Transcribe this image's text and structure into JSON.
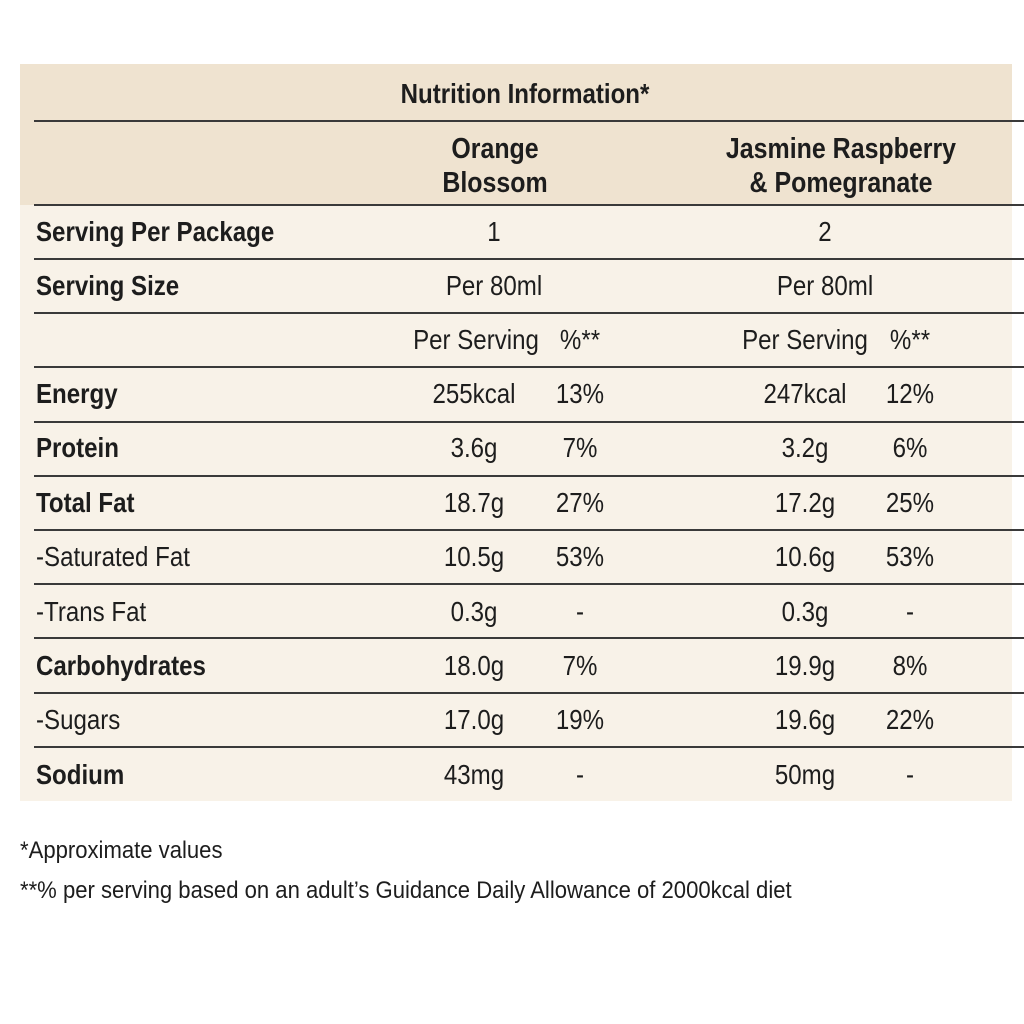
{
  "title": "Nutrition Information*",
  "columns": {
    "product_a": [
      "Orange",
      "Blossom"
    ],
    "product_b": [
      "Jasmine Raspberry",
      "& Pomegranate"
    ]
  },
  "serving_per_package": {
    "label": "Serving Per Package",
    "a": "1",
    "b": "2"
  },
  "serving_size": {
    "label": "Serving Size",
    "a": "Per 80ml",
    "b": "Per 80ml"
  },
  "subheaders": {
    "per_serving": "Per Serving",
    "percent": "%**"
  },
  "rows": [
    {
      "label": "Energy",
      "bold": true,
      "a_value": "255kcal",
      "a_pct": "13%",
      "b_value": "247kcal",
      "b_pct": "12%"
    },
    {
      "label": "Protein",
      "bold": true,
      "a_value": "3.6g",
      "a_pct": "7%",
      "b_value": "3.2g",
      "b_pct": "6%"
    },
    {
      "label": "Total Fat",
      "bold": true,
      "a_value": "18.7g",
      "a_pct": "27%",
      "b_value": "17.2g",
      "b_pct": "25%"
    },
    {
      "label": "-Saturated Fat",
      "bold": false,
      "a_value": "10.5g",
      "a_pct": "53%",
      "b_value": "10.6g",
      "b_pct": "53%"
    },
    {
      "label": "-Trans Fat",
      "bold": false,
      "a_value": "0.3g",
      "a_pct": "-",
      "b_value": "0.3g",
      "b_pct": "-"
    },
    {
      "label": "Carbohydrates",
      "bold": true,
      "a_value": "18.0g",
      "a_pct": "7%",
      "b_value": "19.9g",
      "b_pct": "8%"
    },
    {
      "label": "-Sugars",
      "bold": false,
      "a_value": "17.0g",
      "a_pct": "19%",
      "b_value": "19.6g",
      "b_pct": "22%"
    },
    {
      "label": "Sodium",
      "bold": true,
      "a_value": "43mg",
      "a_pct": "-",
      "b_value": "50mg",
      "b_pct": "-"
    }
  ],
  "footnotes": [
    "*Approximate values",
    "**% per serving based on an adult’s Guidance Daily Allowance of 2000kcal diet"
  ],
  "colors": {
    "header_band": "#efe3d0",
    "panel": "#f8f2e8",
    "rule": "#3a3a3a"
  }
}
